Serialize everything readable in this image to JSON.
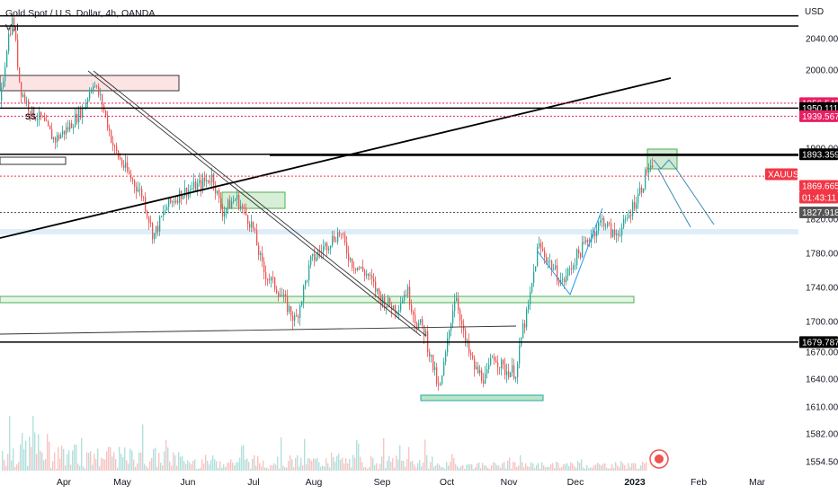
{
  "header": {
    "title": "Gold Spot / U.S. Dollar, 4h, OANDA",
    "volume_label": "Vol",
    "currency": "USD"
  },
  "chart_data": {
    "type": "candlestick",
    "title": "Gold Spot / U.S. Dollar, 4h, OANDA",
    "ylabel": "USD",
    "ylim": [
      1545,
      2085
    ],
    "y_ticks": [
      2040,
      2000,
      1940,
      1900,
      1860,
      1820,
      1780,
      1740,
      1700,
      1670,
      1640,
      1610,
      1582,
      1554.5
    ],
    "y_tick_labels": [
      "2040.000",
      "2000.000",
      "1940.000",
      "1900.000",
      "1860.000",
      "1820.000",
      "1780.000",
      "1740.000",
      "1700.000",
      "1670.000",
      "1640.000",
      "1610.000",
      "1582.000",
      "1554.500"
    ],
    "x_ticks": [
      "Apr",
      "May",
      "Jun",
      "Jul",
      "Aug",
      "Sep",
      "Oct",
      "Nov",
      "Dec",
      "2023",
      "Feb",
      "Mar"
    ],
    "price_tags": [
      {
        "label": "1956.549",
        "color": "#e91e63"
      },
      {
        "label": "1950.111",
        "color": "#000000"
      },
      {
        "label": "1939.567",
        "color": "#e91e63"
      },
      {
        "label": "1893.359",
        "color": "#000000"
      },
      {
        "label": "XAUUSD",
        "color": "#f23645"
      },
      {
        "label": "1869.665",
        "color": "#f23645"
      },
      {
        "label": "01:43:11",
        "color": "#f23645"
      },
      {
        "label": "1827.918",
        "color": "#555555"
      },
      {
        "label": "1679.787",
        "color": "#000000"
      }
    ],
    "horizontal_levels": [
      {
        "value": 2069,
        "style": "solid",
        "color": "#000000"
      },
      {
        "value": 2056,
        "style": "solid",
        "color": "#000000"
      },
      {
        "value": 1956.549,
        "style": "dotted",
        "color": "#e91e63"
      },
      {
        "value": 1950.111,
        "style": "solid",
        "color": "#000000"
      },
      {
        "value": 1939.567,
        "style": "dotted",
        "color": "#e91e63"
      },
      {
        "value": 1893.359,
        "style": "solid",
        "color": "#000000"
      },
      {
        "value": 1869.665,
        "style": "dotted",
        "color": "#f23645"
      },
      {
        "value": 1827.918,
        "style": "dotted",
        "color": "#555555"
      },
      {
        "value": 1679.787,
        "style": "solid",
        "color": "#000000"
      }
    ],
    "annotation": "SS"
  }
}
